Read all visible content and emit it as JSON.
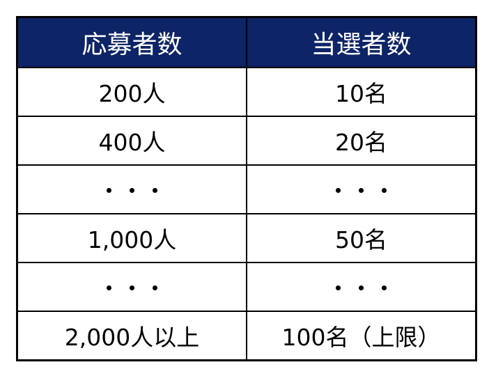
{
  "header_color": "#0d2466",
  "headers": [
    "応募者数",
    "当選者数"
  ],
  "rows": [
    [
      "200人",
      "10名"
    ],
    [
      "400人",
      "20名"
    ],
    [
      "・・・",
      "・・・"
    ],
    [
      "1,000人",
      "50名"
    ],
    [
      "・・・",
      "・・・"
    ],
    [
      "2,000人以上",
      "100名（上限）"
    ]
  ]
}
